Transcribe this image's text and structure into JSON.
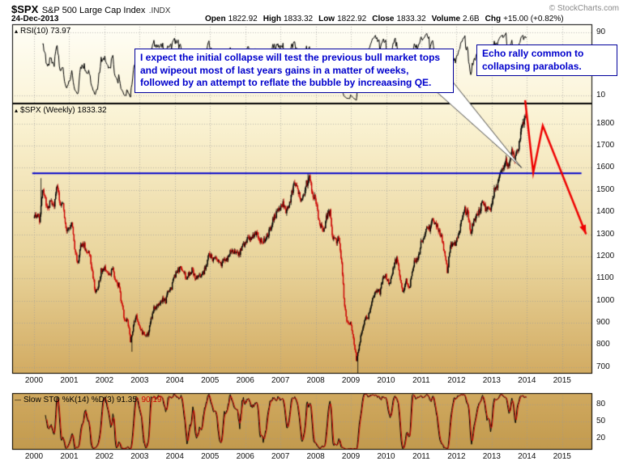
{
  "header": {
    "symbol": "$SPX",
    "title": "S&P 500 Large Cap Index",
    "suffix": ".INDX",
    "copyright": "© StockCharts.com",
    "date": "24-Dec-2013",
    "quote_fields": [
      {
        "label": "Open",
        "value": "1822.92"
      },
      {
        "label": "High",
        "value": "1833.32"
      },
      {
        "label": "Low",
        "value": "1822.92"
      },
      {
        "label": "Close",
        "value": "1833.32"
      },
      {
        "label": "Volume",
        "value": "2.6B"
      },
      {
        "label": "Chg",
        "value": "+15.00 (+0.82%)"
      }
    ]
  },
  "panes": {
    "rsi_pane": {
      "icon": "▴",
      "label": "RSI(10)",
      "value": "73.97",
      "axis_labels": [
        90,
        10
      ]
    },
    "main_pane": {
      "icon": "▴",
      "label": "$SPX (Weekly)",
      "value": "1833.32",
      "axis_labels": [
        1800,
        1700,
        1600,
        1500,
        1400,
        1300,
        1200,
        1100,
        1000,
        900,
        800,
        700
      ]
    },
    "sto_pane": {
      "icon": "—",
      "label": "Slow STO %K(14) %D(3)",
      "k_value": "91.35,",
      "d_value": "90.19",
      "axis_labels": [
        80,
        50,
        20
      ]
    }
  },
  "x_axis": {
    "years": [
      "2000",
      "2001",
      "2002",
      "2003",
      "2004",
      "2005",
      "2006",
      "2007",
      "2008",
      "2009",
      "2010",
      "2011",
      "2012",
      "2013",
      "2014",
      "2015"
    ]
  },
  "annotations": {
    "note_text": "I expect the initial collapse will test the previous bull market tops and wipeout most of last years gains in a matter of weeks, followed by an attempt to reflate the bubble by increaasing QE.",
    "echo_text": "Echo rally common to collapsing parabolas.",
    "resistance_value": 1575,
    "resistance_x_range": [
      1999.95,
      2015.55
    ],
    "arrow_path_data": [
      [
        2013.95,
        1905
      ],
      [
        2014.18,
        1578
      ],
      [
        2014.45,
        1790
      ],
      [
        2015.68,
        1300
      ]
    ],
    "callout_tip": [
      2013.85,
      1600
    ]
  },
  "chart_data": {
    "type": "candlestick",
    "title": "$SPX (Weekly) 1833.32",
    "timeframe": "Weekly",
    "x_range_years": [
      2000,
      2015
    ],
    "y_axis_ticks": [
      1800,
      1700,
      1600,
      1500,
      1400,
      1300,
      1200,
      1100,
      1000,
      900,
      800,
      700
    ],
    "y_range": [
      670,
      1890
    ],
    "monthly_closes": {
      "start": "2000-01",
      "interval": "monthly",
      "values": [
        1394,
        1366,
        1499,
        1452,
        1421,
        1455,
        1431,
        1518,
        1436,
        1429,
        1315,
        1320,
        1366,
        1240,
        1160,
        1249,
        1256,
        1224,
        1211,
        1134,
        1041,
        1060,
        1139,
        1148,
        1130,
        1107,
        1147,
        1077,
        1067,
        990,
        912,
        916,
        815,
        886,
        936,
        880,
        856,
        841,
        848,
        917,
        964,
        975,
        990,
        1008,
        996,
        1051,
        1058,
        1112,
        1131,
        1145,
        1126,
        1107,
        1121,
        1141,
        1102,
        1104,
        1115,
        1130,
        1174,
        1212,
        1181,
        1204,
        1181,
        1157,
        1192,
        1191,
        1234,
        1220,
        1229,
        1207,
        1249,
        1248,
        1280,
        1281,
        1295,
        1311,
        1270,
        1270,
        1277,
        1304,
        1336,
        1378,
        1401,
        1418,
        1438,
        1407,
        1421,
        1482,
        1531,
        1503,
        1455,
        1474,
        1527,
        1549,
        1481,
        1468,
        1379,
        1331,
        1323,
        1386,
        1400,
        1280,
        1267,
        1283,
        1166,
        969,
        896,
        903,
        826,
        735,
        798,
        873,
        919,
        919,
        987,
        1021,
        1057,
        1036,
        1096,
        1115,
        1074,
        1104,
        1169,
        1187,
        1089,
        1031,
        1102,
        1049,
        1141,
        1183,
        1181,
        1258,
        1286,
        1327,
        1326,
        1364,
        1345,
        1321,
        1292,
        1219,
        1131,
        1253,
        1247,
        1258,
        1312,
        1366,
        1408,
        1398,
        1310,
        1362,
        1379,
        1407,
        1441,
        1412,
        1416,
        1426,
        1498,
        1515,
        1569,
        1598,
        1631,
        1606,
        1686,
        1633,
        1682,
        1757,
        1806,
        1833
      ]
    },
    "key_points": [
      {
        "ym": "2000-03",
        "type": "high",
        "value": 1553
      },
      {
        "ym": "2002-10",
        "type": "low",
        "value": 769
      },
      {
        "ym": "2007-10",
        "type": "high",
        "value": 1576
      },
      {
        "ym": "2009-03",
        "type": "low",
        "value": 667
      },
      {
        "ym": "2013-12",
        "type": "close",
        "value": 1833.32
      }
    ],
    "indicators": [
      {
        "name": "RSI",
        "period": 10,
        "last": 73.97,
        "pane_axis": [
          90,
          10
        ]
      },
      {
        "name": "Slow STO",
        "k_period": 14,
        "d_period": 3,
        "k_last": 91.35,
        "d_last": 90.19,
        "pane_axis": [
          80,
          50,
          20
        ]
      }
    ]
  },
  "colors": {
    "candle_up": "#000000",
    "candle_down": "#cc0000",
    "resistance_line": "#0000cc",
    "annotation_text": "#0000cc",
    "arrow": "#ee0000",
    "rsi_line": "#000000",
    "sto_k": "#000000",
    "sto_d": "#cc0000",
    "grid": "#999999",
    "pane_border": "#000000"
  }
}
